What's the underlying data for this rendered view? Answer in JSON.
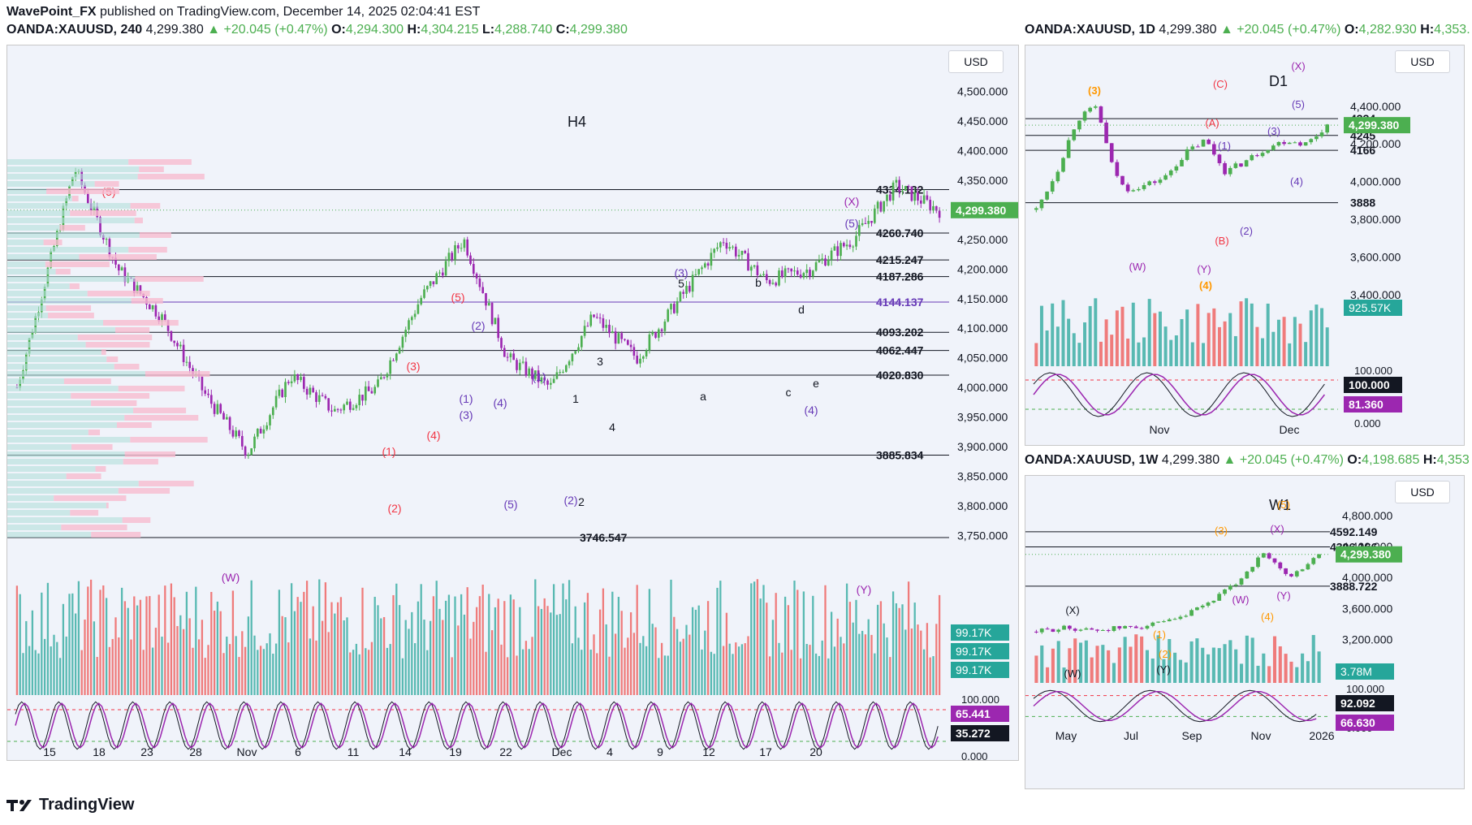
{
  "header": {
    "author": "WavePoint_FX",
    "published": "published on TradingView.com, December 14, 2025 02:04:41 EST",
    "symbol_line": "OANDA:XAUUSD, 240",
    "price": "4,299.380",
    "change": "+20.045 (+0.47%)",
    "o_label": "O:",
    "o": "4,294.300",
    "h_label": "H:",
    "h": "4,304.215",
    "l_label": "L:",
    "l": "4,288.740",
    "c_label": "C:",
    "c": "4,299.380"
  },
  "d1_header": {
    "symbol_line": "OANDA:XAUUSD, 1D",
    "price": "4,299.380",
    "change": "+20.045 (+0.47%)",
    "o_label": "O:",
    "o": "4,282.930",
    "h_label": "H:",
    "h": "4,353."
  },
  "w1_header": {
    "symbol_line": "OANDA:XAUUSD, 1W",
    "price": "4,299.380",
    "change": "+20.045 (+0.47%)",
    "o_label": "O:",
    "o": "4,198.685",
    "h_label": "H:",
    "h": "4,353"
  },
  "footer": {
    "brand": "TradingView"
  },
  "colors": {
    "up": "#4caf50",
    "down": "#9c27b0",
    "vol_up": "#26a69a",
    "vol_down": "#ef5350",
    "price_tag": "#4caf50",
    "accent_purple": "#673ab7",
    "orange": "#ff9800",
    "red": "#f23645"
  },
  "chart_data": [
    {
      "id": "h4",
      "type": "line",
      "title": "H4",
      "currency": "USD",
      "ylim": [
        3700,
        4550
      ],
      "y_ticks": [
        "4,500.000",
        "4,450.000",
        "4,400.000",
        "4,350.000",
        "4,300.000",
        "4,250.000",
        "4,200.000",
        "4,150.000",
        "4,100.000",
        "4,050.000",
        "4,000.000",
        "3,950.000",
        "3,900.000",
        "3,850.000",
        "3,800.000",
        "3,750.000"
      ],
      "y_tick_values": [
        4500,
        4450,
        4400,
        4350,
        4300,
        4250,
        4200,
        4150,
        4100,
        4050,
        4000,
        3950,
        3900,
        3850,
        3800,
        3750
      ],
      "x_ticks": [
        "15",
        "18",
        "23",
        "28",
        "Nov",
        "6",
        "11",
        "14",
        "19",
        "22",
        "Dec",
        "4",
        "9",
        "12",
        "17",
        "20"
      ],
      "price_tag": "4,299.380",
      "levels": [
        {
          "label": "4334.132",
          "value": 4334.132,
          "color": "#131722"
        },
        {
          "label": "4260.740",
          "value": 4260.74,
          "color": "#131722"
        },
        {
          "label": "4215.247",
          "value": 4215.247,
          "color": "#131722"
        },
        {
          "label": "4187.286",
          "value": 4187.286,
          "color": "#131722"
        },
        {
          "label": "4144.137",
          "value": 4144.137,
          "color": "#673ab7"
        },
        {
          "label": "4093.202",
          "value": 4093.202,
          "color": "#131722"
        },
        {
          "label": "4062.447",
          "value": 4062.447,
          "color": "#131722"
        },
        {
          "label": "4020.830",
          "value": 4020.83,
          "color": "#131722"
        },
        {
          "label": "3885.834",
          "value": 3885.834,
          "color": "#131722"
        },
        {
          "label": "3746.547",
          "value": 3746.547,
          "color": "#131722"
        }
      ],
      "series": [
        {
          "name": "XAUUSD 240 close",
          "x": [
            0,
            4,
            7,
            10,
            13,
            16,
            19,
            22,
            25,
            28,
            31,
            34,
            37,
            40,
            43,
            46,
            49,
            52,
            55,
            58,
            61,
            64
          ],
          "values": [
            4000,
            4370,
            4200,
            4120,
            3990,
            3890,
            4020,
            3960,
            4000,
            4150,
            4250,
            4050,
            4000,
            4120,
            4050,
            4150,
            4250,
            4180,
            4200,
            4250,
            4340,
            4299
          ]
        }
      ],
      "wave_labels": [
        {
          "t": "(5)",
          "c": "#f23645"
        },
        {
          "t": "(W)",
          "c": "#9c27b0"
        },
        {
          "t": "(1)",
          "c": "#f23645"
        },
        {
          "t": "(2)",
          "c": "#f23645"
        },
        {
          "t": "(3)",
          "c": "#f23645"
        },
        {
          "t": "(4)",
          "c": "#f23645"
        },
        {
          "t": "(5)",
          "c": "#f23645"
        },
        {
          "t": "(1)",
          "c": "#673ab7"
        },
        {
          "t": "(2)",
          "c": "#673ab7"
        },
        {
          "t": "(3)",
          "c": "#673ab7"
        },
        {
          "t": "(4)",
          "c": "#673ab7"
        },
        {
          "t": "(5)",
          "c": "#673ab7"
        },
        {
          "t": "(1)",
          "c": "#673ab7"
        },
        {
          "t": "(2)",
          "c": "#673ab7"
        },
        {
          "t": "1",
          "c": "#131722"
        },
        {
          "t": "2",
          "c": "#131722"
        },
        {
          "t": "3",
          "c": "#131722"
        },
        {
          "t": "4",
          "c": "#131722"
        },
        {
          "t": "5",
          "c": "#131722"
        },
        {
          "t": "(3)",
          "c": "#673ab7"
        },
        {
          "t": "a",
          "c": "#131722"
        },
        {
          "t": "b",
          "c": "#131722"
        },
        {
          "t": "c",
          "c": "#131722"
        },
        {
          "t": "d",
          "c": "#131722"
        },
        {
          "t": "e",
          "c": "#131722"
        },
        {
          "t": "(4)",
          "c": "#673ab7"
        },
        {
          "t": "(5)",
          "c": "#673ab7"
        },
        {
          "t": "(X)",
          "c": "#9c27b0"
        },
        {
          "t": "(Y)",
          "c": "#9c27b0"
        }
      ],
      "volume_tags": [
        "99.17K",
        "99.17K",
        "99.17K"
      ],
      "stoch": {
        "ticks": [
          "100.000",
          "0.000"
        ],
        "values": [
          "65.441",
          "35.272"
        ],
        "upper": 80,
        "lower": 20
      }
    },
    {
      "id": "d1",
      "type": "line",
      "title": "D1",
      "currency": "USD",
      "ylim": [
        3300,
        4550
      ],
      "y_ticks": [
        "4,400.000",
        "4,200.000",
        "4,000.000",
        "3,800.000",
        "3,600.000",
        "3,400.000"
      ],
      "y_tick_values": [
        4400,
        4200,
        4000,
        3800,
        3600,
        3400
      ],
      "x_ticks": [
        "Nov",
        "Dec"
      ],
      "price_tag": "4,299.380",
      "levels": [
        {
          "label": "4334",
          "value": 4334
        },
        {
          "label": "4245",
          "value": 4245
        },
        {
          "label": "4166",
          "value": 4166
        },
        {
          "label": "3888",
          "value": 3888
        }
      ],
      "series": [
        {
          "name": "XAUUSD 1D close",
          "x": [
            0,
            3,
            6,
            9,
            11,
            13,
            16,
            19,
            22,
            25,
            28,
            31,
            34,
            37,
            40,
            43
          ],
          "values": [
            3850,
            4050,
            4330,
            4400,
            4100,
            3960,
            3980,
            4020,
            4150,
            4220,
            4050,
            4110,
            4180,
            4220,
            4200,
            4299
          ]
        }
      ],
      "wave_labels": [
        {
          "t": "(3)",
          "c": "#ff9800"
        },
        {
          "t": "(W)",
          "c": "#9c27b0"
        },
        {
          "t": "(A)",
          "c": "#f23645"
        },
        {
          "t": "(B)",
          "c": "#f23645"
        },
        {
          "t": "(C)",
          "c": "#f23645"
        },
        {
          "t": "(1)",
          "c": "#673ab7"
        },
        {
          "t": "(2)",
          "c": "#673ab7"
        },
        {
          "t": "(3)",
          "c": "#673ab7"
        },
        {
          "t": "(4)",
          "c": "#673ab7"
        },
        {
          "t": "(5)",
          "c": "#673ab7"
        },
        {
          "t": "(X)",
          "c": "#9c27b0"
        },
        {
          "t": "(Y)",
          "c": "#9c27b0"
        },
        {
          "t": "(4)",
          "c": "#ff9800"
        }
      ],
      "volume_tag": "925.57K",
      "stoch": {
        "ticks": [
          "100.000",
          "0.000"
        ],
        "values": [
          "100.000",
          "81.360"
        ]
      }
    },
    {
      "id": "w1",
      "type": "line",
      "title": "W1",
      "currency": "USD",
      "ylim": [
        2900,
        5000
      ],
      "y_ticks": [
        "4,800.000",
        "4,400.000",
        "4,000.000",
        "3,600.000",
        "3,200.000"
      ],
      "y_tick_values": [
        4800,
        4400,
        4000,
        3600,
        3200
      ],
      "x_ticks": [
        "May",
        "Jul",
        "Sep",
        "Nov",
        "2026"
      ],
      "price_tag": "4,299.380",
      "levels": [
        {
          "label": "4592.149",
          "value": 4592.149
        },
        {
          "label": "4396.166",
          "value": 4396.166
        },
        {
          "label": "3888.722",
          "value": 3888.722
        }
      ],
      "series": [
        {
          "name": "XAUUSD 1W close",
          "x": [
            0,
            3,
            6,
            9,
            12,
            15,
            18,
            21,
            24,
            27,
            30
          ],
          "values": [
            3300,
            3350,
            3320,
            3350,
            3380,
            3450,
            3650,
            3900,
            4300,
            4000,
            4299
          ]
        }
      ],
      "wave_labels": [
        {
          "t": "(X)",
          "c": "#131722"
        },
        {
          "t": "(W)",
          "c": "#131722"
        },
        {
          "t": "(Y)",
          "c": "#131722"
        },
        {
          "t": "(1)",
          "c": "#ff9800"
        },
        {
          "t": "(2)",
          "c": "#ff9800"
        },
        {
          "t": "(3)",
          "c": "#ff9800"
        },
        {
          "t": "(4)",
          "c": "#ff9800"
        },
        {
          "t": "(5)",
          "c": "#ff9800"
        },
        {
          "t": "(W)",
          "c": "#9c27b0"
        },
        {
          "t": "(X)",
          "c": "#9c27b0"
        },
        {
          "t": "(Y)",
          "c": "#9c27b0"
        }
      ],
      "volume_tag": "3.78M",
      "stoch": {
        "ticks": [
          "100.000",
          "0.000"
        ],
        "values": [
          "92.092",
          "66.630"
        ]
      }
    }
  ]
}
